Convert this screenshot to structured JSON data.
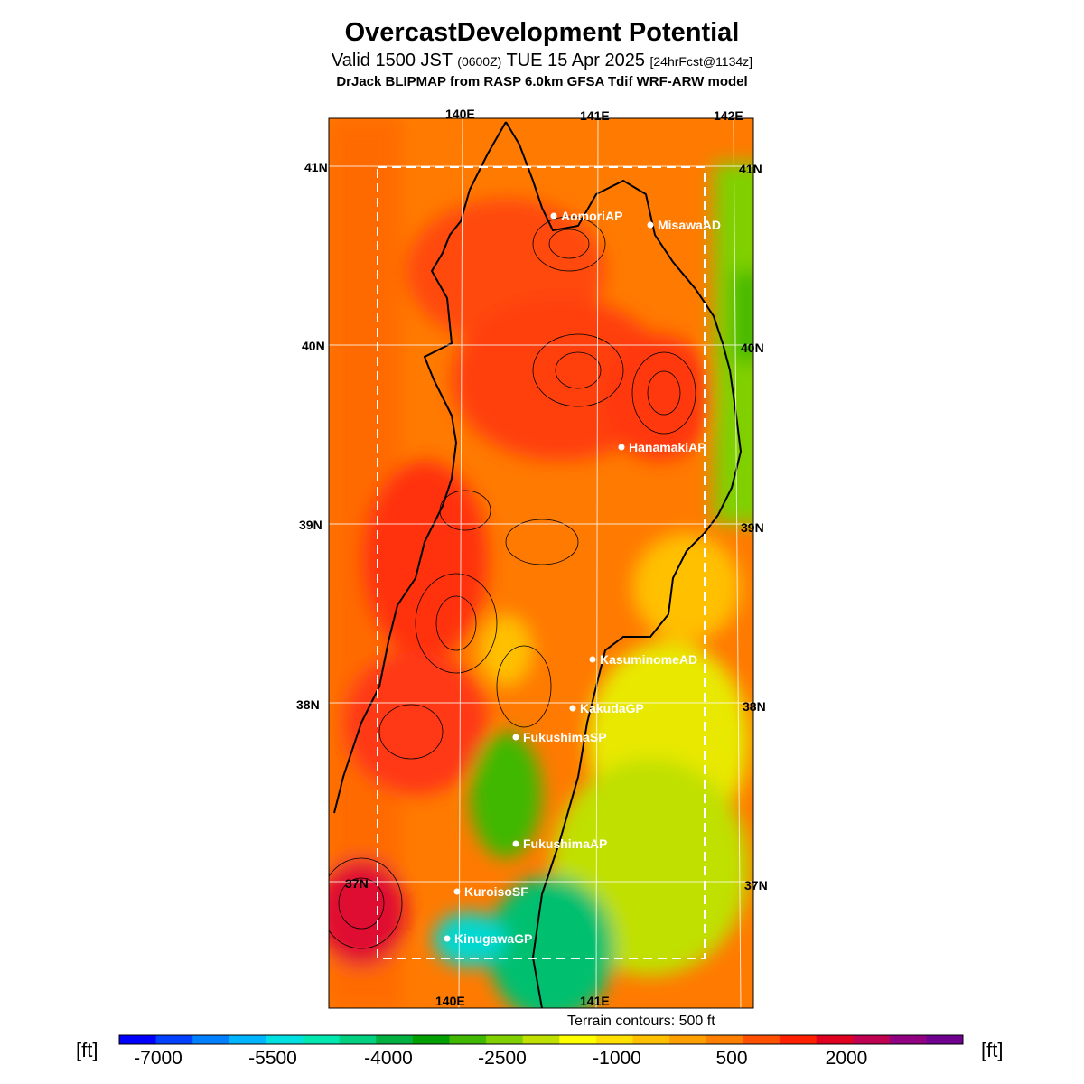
{
  "header": {
    "title": "OvercastDevelopment Potential",
    "valid_prefix": "Valid 1500 JST ",
    "valid_zulu": "(0600Z)",
    "valid_date": " TUE 15 Apr 2025 ",
    "forecast": "[24hrFcst@1134z]",
    "model": "DrJack BLIPMAP from RASP 6.0km GFSA Tdif WRF-ARW model"
  },
  "map": {
    "lon_labels_top": [
      "140E",
      "141E",
      "142E"
    ],
    "lon_labels_bottom": [
      "140E",
      "141E"
    ],
    "lat_labels_left": [
      "41N",
      "40N",
      "39N",
      "38N",
      "37N"
    ],
    "lat_labels_right": [
      "41N",
      "40N",
      "39N",
      "38N",
      "37N"
    ],
    "terrain_note": "Terrain contours: 500 ft",
    "stations": [
      "AomoriAP",
      "MisawaAD",
      "HanamakiAP",
      "KasuminomeAD",
      "KakudaGP",
      "FukushimaSP",
      "FukushimaAP",
      "KuroisoSF",
      "KinugawaGP"
    ]
  },
  "colorbar": {
    "unit_left": "[ft]",
    "unit_right": "[ft]",
    "tick_labels": [
      "-7000",
      "-5500",
      "-4000",
      "-2500",
      "-1000",
      "500",
      "2000"
    ],
    "colors": [
      "#0000ff",
      "#0040ff",
      "#0080ff",
      "#00b4ff",
      "#00e0e0",
      "#00e8b0",
      "#00d080",
      "#00b040",
      "#00a000",
      "#40b800",
      "#80d000",
      "#c0e000",
      "#ffff00",
      "#ffe000",
      "#ffc000",
      "#ffa000",
      "#ff8000",
      "#ff5000",
      "#ff2000",
      "#e00020",
      "#c00050",
      "#900080",
      "#700090"
    ]
  }
}
